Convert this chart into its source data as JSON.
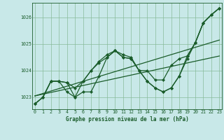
{
  "title": "Graphe pression niveau de la mer (hPa)",
  "background_color": "#c8e8e8",
  "plot_bg_color": "#c8e8e8",
  "grid_color": "#88bb99",
  "line_color": "#1a5c2a",
  "marker_color": "#1a5c2a",
  "xlim": [
    -0.3,
    23.3
  ],
  "ylim": [
    1022.55,
    1026.55
  ],
  "yticks": [
    1023,
    1024,
    1025,
    1026
  ],
  "xticks": [
    0,
    1,
    2,
    3,
    4,
    5,
    6,
    7,
    8,
    9,
    10,
    11,
    12,
    13,
    14,
    15,
    16,
    17,
    18,
    19,
    20,
    21,
    22,
    23
  ],
  "series": [
    [
      1022.75,
      1023.0,
      1023.6,
      1023.6,
      1023.2,
      1023.0,
      1023.2,
      1023.2,
      1023.8,
      1024.5,
      1024.75,
      1024.5,
      1024.45,
      1024.0,
      1023.6,
      1023.35,
      1023.2,
      1023.35,
      1023.8,
      1024.45,
      1025.05,
      1025.8,
      1026.1,
      1026.35
    ],
    [
      1022.75,
      1023.0,
      1023.6,
      1023.6,
      1023.55,
      1023.35,
      1023.6,
      1024.0,
      1024.3,
      1024.5,
      1024.75,
      1024.5,
      1024.45,
      1024.0,
      1024.0,
      1023.65,
      1023.65,
      1024.2,
      1024.45,
      1024.55,
      1025.05,
      1025.8,
      1026.1,
      1026.35
    ],
    [
      1022.75,
      1023.0,
      1023.6,
      1023.6,
      1023.55,
      1023.0,
      1023.6,
      1024.0,
      1024.35,
      1024.6,
      1024.75,
      1024.6,
      1024.5,
      1024.0,
      1023.6,
      1023.35,
      1023.2,
      1023.35,
      1023.8,
      1024.55,
      1025.05,
      1025.8,
      1026.1,
      1026.35
    ]
  ],
  "linear_series": [
    {
      "x": [
        0,
        23
      ],
      "y": [
        1023.05,
        1024.55
      ]
    },
    {
      "x": [
        0,
        23
      ],
      "y": [
        1023.05,
        1025.15
      ]
    }
  ]
}
